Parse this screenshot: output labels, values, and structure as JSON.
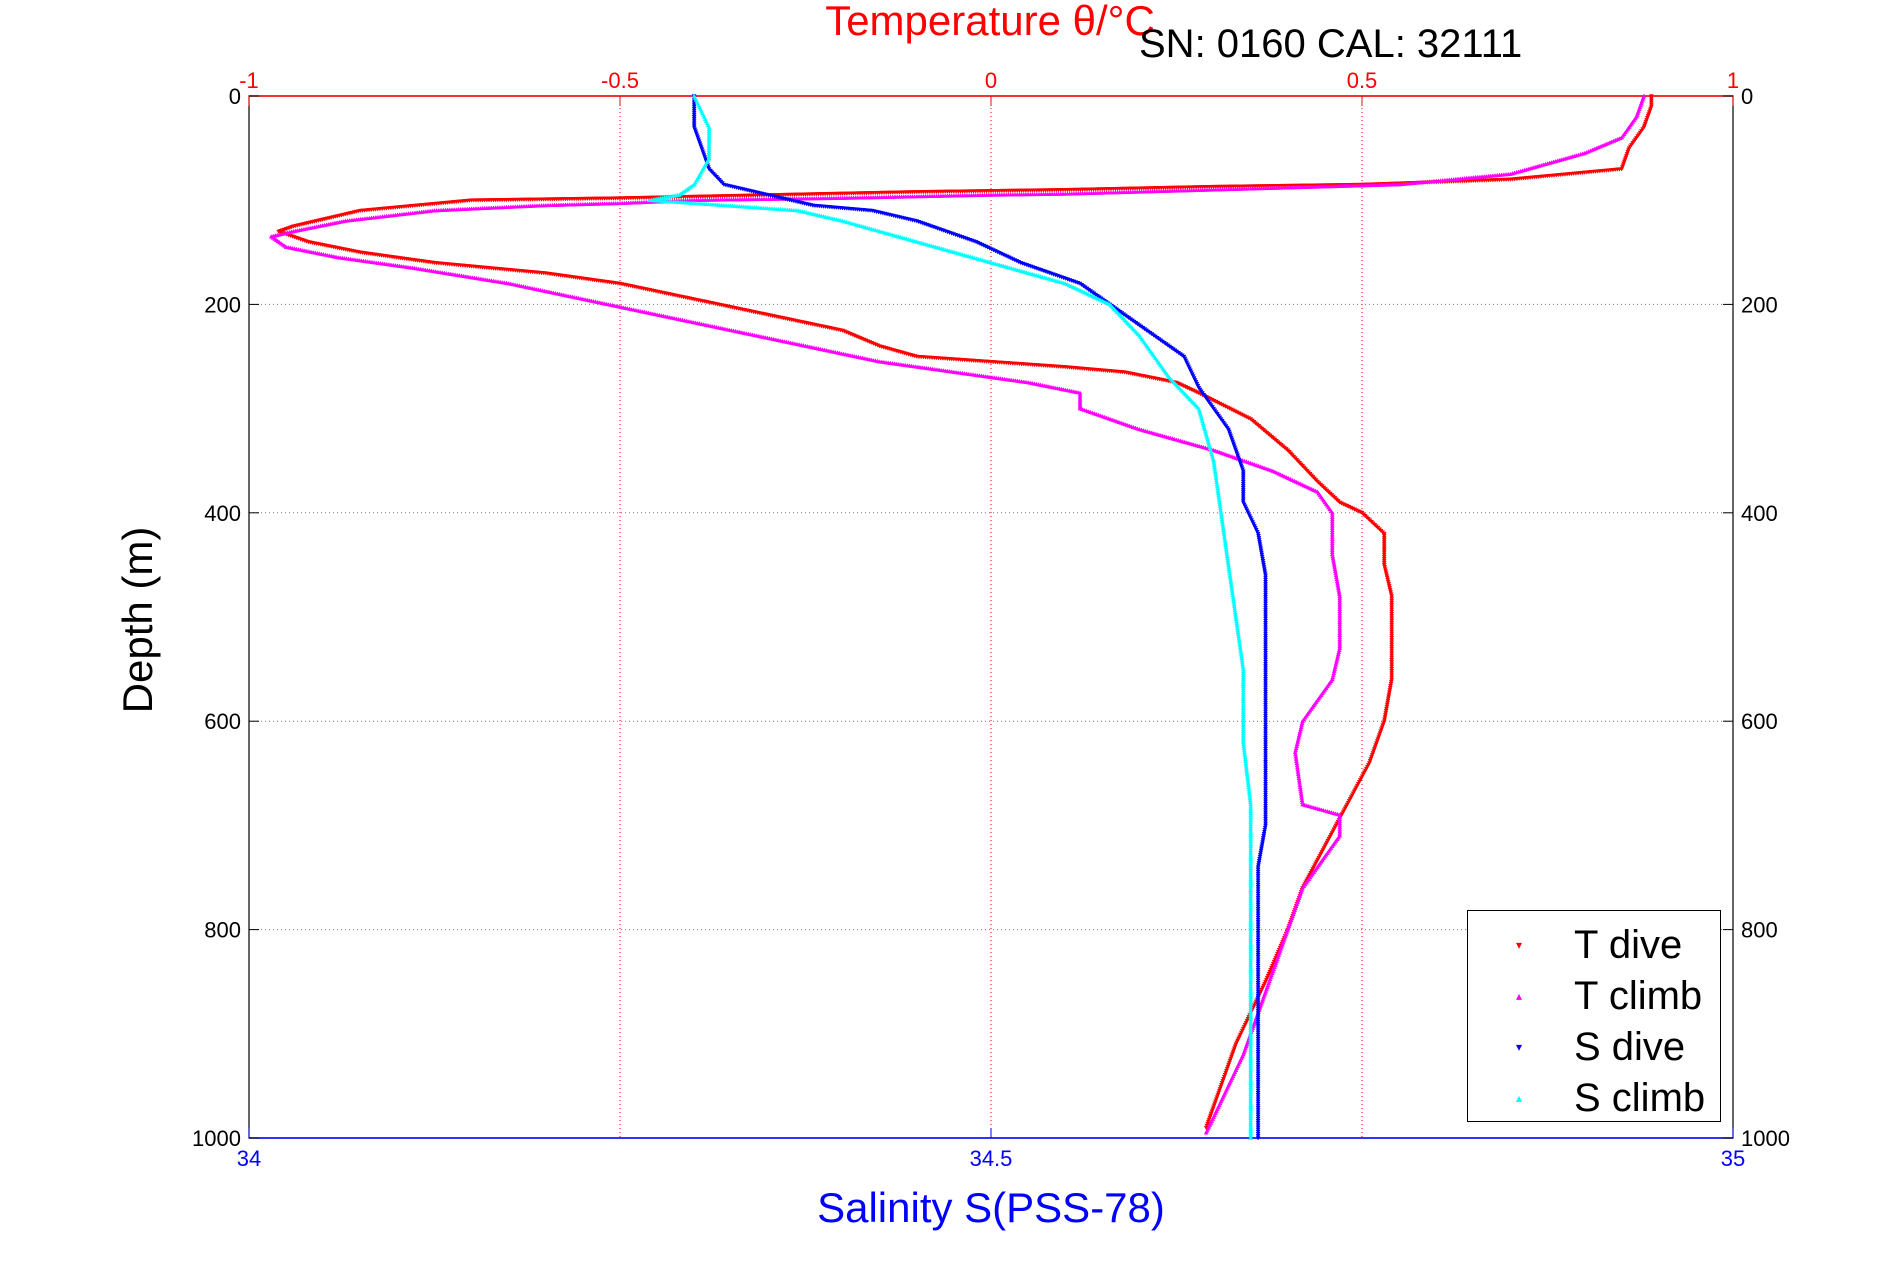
{
  "chart_data": {
    "type": "scatter",
    "title": "Temperature θ/°C",
    "annotation": "SN: 0160  CAL: 32111",
    "xlabel": "Salinity S(PSS-78)",
    "ylabel": "Depth (m)",
    "colors": {
      "temperature_axis": "#ff0000",
      "salinity_axis": "#0000ff",
      "T dive": "#ff0000",
      "T climb": "#ff00ff",
      "S dive": "#0000ff",
      "S climb": "#00ffff"
    },
    "temperature_axis": {
      "range": [
        -1,
        1
      ],
      "ticks": [
        -1,
        -0.5,
        0,
        0.5,
        1
      ],
      "tick_labels": [
        "-1",
        "-0.5",
        "0",
        "0.5",
        "1"
      ],
      "position": "top"
    },
    "salinity_axis": {
      "range": [
        34,
        35
      ],
      "ticks": [
        34,
        34.5,
        35
      ],
      "tick_labels": [
        "34",
        "34.5",
        "35"
      ],
      "position": "bottom"
    },
    "depth_axis": {
      "range": [
        0,
        1000
      ],
      "reversed": true,
      "ticks": [
        0,
        200,
        400,
        600,
        800,
        1000
      ],
      "tick_labels": [
        "0",
        "200",
        "400",
        "600",
        "800",
        "1000"
      ]
    },
    "grid": true,
    "legend": {
      "position": "bottom-right",
      "entries": [
        "T dive",
        "T climb",
        "S dive",
        "S climb"
      ]
    },
    "series": [
      {
        "name": "T dive",
        "axis": "temperature",
        "marker": "▾",
        "x": [
          0.89,
          0.89,
          0.88,
          0.86,
          0.85,
          0.7,
          0.5,
          0.3,
          0.1,
          -0.1,
          -0.3,
          -0.5,
          -0.7,
          -0.85,
          -0.94,
          -0.96,
          -0.92,
          -0.85,
          -0.75,
          -0.6,
          -0.5,
          -0.4,
          -0.3,
          -0.2,
          -0.15,
          -0.1,
          0.0,
          0.1,
          0.18,
          0.25,
          0.28,
          0.35,
          0.4,
          0.44,
          0.47,
          0.5,
          0.53,
          0.53,
          0.54,
          0.54,
          0.54,
          0.53,
          0.51,
          0.48,
          0.45,
          0.42,
          0.4,
          0.37,
          0.33,
          0.29
        ],
        "y": [
          0,
          10,
          30,
          50,
          70,
          80,
          85,
          87,
          90,
          92,
          95,
          98,
          100,
          110,
          125,
          130,
          140,
          150,
          160,
          170,
          180,
          195,
          210,
          225,
          240,
          250,
          255,
          260,
          265,
          275,
          285,
          310,
          340,
          370,
          390,
          400,
          420,
          450,
          480,
          520,
          560,
          600,
          640,
          680,
          720,
          760,
          800,
          850,
          910,
          990
        ]
      },
      {
        "name": "T climb",
        "axis": "temperature",
        "marker": "▴",
        "x": [
          0.88,
          0.87,
          0.85,
          0.8,
          0.7,
          0.55,
          0.4,
          0.3,
          0.2,
          0.1,
          0.0,
          -0.2,
          -0.4,
          -0.5,
          -0.6,
          -0.75,
          -0.87,
          -0.94,
          -0.97,
          -0.95,
          -0.88,
          -0.78,
          -0.65,
          -0.55,
          -0.45,
          -0.35,
          -0.25,
          -0.15,
          -0.05,
          0.05,
          0.12,
          0.12,
          0.2,
          0.3,
          0.38,
          0.44,
          0.46,
          0.46,
          0.47,
          0.47,
          0.46,
          0.42,
          0.41,
          0.42,
          0.47,
          0.47,
          0.42,
          0.38,
          0.34,
          0.29
        ],
        "y": [
          0,
          20,
          40,
          55,
          75,
          85,
          88,
          90,
          92,
          94,
          95,
          98,
          100,
          103,
          105,
          110,
          120,
          130,
          135,
          145,
          155,
          165,
          180,
          195,
          210,
          225,
          240,
          255,
          265,
          275,
          285,
          300,
          320,
          340,
          360,
          380,
          400,
          440,
          480,
          530,
          560,
          600,
          630,
          680,
          690,
          710,
          760,
          840,
          920,
          995
        ]
      },
      {
        "name": "S dive",
        "axis": "salinity",
        "marker": "▾",
        "x": [
          34.3,
          34.3,
          34.31,
          34.32,
          34.35,
          34.38,
          34.42,
          34.45,
          34.49,
          34.52,
          34.56,
          34.58,
          34.6,
          34.63,
          34.64,
          34.65,
          34.66,
          34.67,
          34.67,
          34.68,
          34.685,
          34.685,
          34.685,
          34.685,
          34.685,
          34.685,
          34.68,
          34.68,
          34.68,
          34.68,
          34.68,
          34.68
        ],
        "y": [
          0,
          30,
          70,
          85,
          95,
          105,
          110,
          120,
          140,
          160,
          180,
          200,
          220,
          250,
          280,
          300,
          320,
          360,
          390,
          420,
          460,
          520,
          580,
          620,
          660,
          700,
          740,
          780,
          820,
          880,
          940,
          1000
        ]
      },
      {
        "name": "S climb",
        "axis": "salinity",
        "marker": "▴",
        "x": [
          34.3,
          34.31,
          34.31,
          34.3,
          34.29,
          34.27,
          34.37,
          34.4,
          34.45,
          34.5,
          34.55,
          34.58,
          34.6,
          34.62,
          34.64,
          34.65,
          34.655,
          34.66,
          34.665,
          34.67,
          34.67,
          34.675,
          34.675,
          34.675,
          34.675,
          34.675
        ],
        "y": [
          0,
          30,
          60,
          85,
          95,
          100,
          110,
          120,
          140,
          160,
          180,
          200,
          230,
          270,
          300,
          350,
          400,
          450,
          500,
          550,
          620,
          680,
          760,
          840,
          920,
          1000
        ]
      }
    ]
  },
  "legend_labels": {
    "t_dive": "T dive",
    "t_climb": "T climb",
    "s_dive": "S dive",
    "s_climb": "S climb"
  }
}
